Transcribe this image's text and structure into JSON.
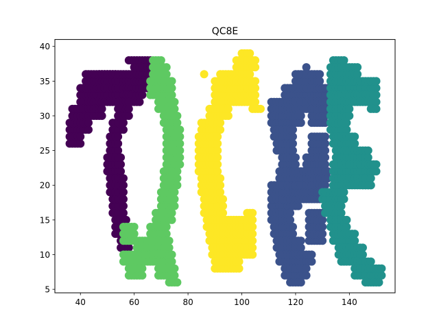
{
  "chart_data": {
    "type": "scatter",
    "title": "QC8E",
    "xlabel": "",
    "ylabel": "",
    "xlim": [
      30.5,
      157
    ],
    "ylim": [
      4.5,
      41
    ],
    "xticks": [
      40,
      60,
      80,
      100,
      120,
      140
    ],
    "yticks": [
      5,
      10,
      15,
      20,
      25,
      30,
      35,
      40
    ],
    "grid": false,
    "legend": "none",
    "marker_colors": {
      "purple": "#440154",
      "green": "#5ec962",
      "yellow": "#fde725",
      "blue": "#3b528b",
      "teal": "#21918c"
    },
    "series": [
      {
        "color": "#440154",
        "strokes": [
          [
            [
              47,
              36
            ],
            [
              53,
              36
            ]
          ],
          [
            [
              42,
              34
            ],
            [
              66,
              36
            ]
          ],
          [
            [
              40,
              32
            ],
            [
              62,
              34
            ]
          ],
          [
            [
              37,
              30
            ],
            [
              48,
              31
            ]
          ],
          [
            [
              36,
              28
            ],
            [
              43,
              29
            ]
          ],
          [
            [
              36,
              26
            ],
            [
              40,
              27
            ]
          ],
          [
            [
              56,
              33
            ],
            [
              63,
              33
            ]
          ],
          [
            [
              54,
              30
            ],
            [
              58,
              32
            ]
          ],
          [
            [
              52,
              28
            ],
            [
              56,
              29
            ]
          ],
          [
            [
              51,
              25
            ],
            [
              54,
              27
            ]
          ],
          [
            [
              50,
              22
            ],
            [
              55,
              24
            ]
          ],
          [
            [
              51,
              19
            ],
            [
              56,
              21
            ]
          ],
          [
            [
              52,
              16
            ],
            [
              56,
              18
            ]
          ],
          [
            [
              53,
              13
            ],
            [
              57,
              15
            ]
          ],
          [
            [
              55,
              11
            ],
            [
              58,
              12
            ]
          ],
          [
            [
              58,
              38
            ],
            [
              66,
              38
            ]
          ],
          [
            [
              60,
              34
            ],
            [
              68,
              37
            ]
          ]
        ]
      },
      {
        "color": "#5ec962",
        "strokes": [
          [
            [
              67,
              38
            ],
            [
              70,
              38
            ]
          ],
          [
            [
              67,
              36
            ],
            [
              72,
              37
            ]
          ],
          [
            [
              66,
              33
            ],
            [
              74,
              35
            ]
          ],
          [
            [
              69,
              31
            ],
            [
              75,
              32
            ]
          ],
          [
            [
              71,
              29
            ],
            [
              76,
              30
            ]
          ],
          [
            [
              72,
              26
            ],
            [
              77,
              28
            ]
          ],
          [
            [
              72,
              23
            ],
            [
              77,
              25
            ]
          ],
          [
            [
              71,
              20
            ],
            [
              76,
              22
            ]
          ],
          [
            [
              70,
              17
            ],
            [
              75,
              19
            ]
          ],
          [
            [
              68,
              15
            ],
            [
              74,
              16
            ]
          ],
          [
            [
              66,
              13
            ],
            [
              72,
              14
            ]
          ],
          [
            [
              61,
              11
            ],
            [
              73,
              12
            ]
          ],
          [
            [
              56,
              9
            ],
            [
              74,
              10
            ]
          ],
          [
            [
              58,
              7
            ],
            [
              63,
              8
            ]
          ],
          [
            [
              69,
              7
            ],
            [
              75,
              8
            ]
          ],
          [
            [
              73,
              6
            ],
            [
              76,
              6
            ]
          ],
          [
            [
              56,
              12
            ],
            [
              60,
              14
            ]
          ]
        ]
      },
      {
        "color": "#fde725",
        "strokes": [
          [
            [
              100,
              39
            ],
            [
              103,
              39
            ]
          ],
          [
            [
              98,
              37
            ],
            [
              105,
              38
            ]
          ],
          [
            [
              92,
              36
            ],
            [
              103,
              36
            ]
          ],
          [
            [
              90,
              32
            ],
            [
              105,
              35
            ]
          ],
          [
            [
              88,
              30
            ],
            [
              95,
              31
            ]
          ],
          [
            [
              85,
              28
            ],
            [
              92,
              29
            ]
          ],
          [
            [
              84,
              25
            ],
            [
              91,
              27
            ]
          ],
          [
            [
              84,
              22
            ],
            [
              91,
              24
            ]
          ],
          [
            [
              85,
              19
            ],
            [
              92,
              21
            ]
          ],
          [
            [
              86,
              16
            ],
            [
              93,
              18
            ]
          ],
          [
            [
              87,
              14
            ],
            [
              102,
              15
            ]
          ],
          [
            [
              88,
              12
            ],
            [
              104,
              13
            ]
          ],
          [
            [
              89,
              10
            ],
            [
              104,
              11
            ]
          ],
          [
            [
              90,
              8
            ],
            [
              99,
              9
            ]
          ],
          [
            [
              102,
              14
            ],
            [
              104,
              16
            ]
          ],
          [
            [
              104,
              31
            ],
            [
              107,
              31
            ]
          ],
          [
            [
              86,
              36
            ],
            [
              86,
              36
            ]
          ]
        ]
      },
      {
        "color": "#3b528b",
        "strokes": [
          [
            [
              124,
              37
            ],
            [
              124,
              37
            ]
          ],
          [
            [
              120,
              35
            ],
            [
              129,
              36
            ]
          ],
          [
            [
              116,
              33
            ],
            [
              132,
              34
            ]
          ],
          [
            [
              111,
              31
            ],
            [
              133,
              32
            ]
          ],
          [
            [
              111,
              29
            ],
            [
              122,
              30
            ]
          ],
          [
            [
              112,
              27
            ],
            [
              119,
              28
            ]
          ],
          [
            [
              113,
              25
            ],
            [
              119,
              26
            ]
          ],
          [
            [
              115,
              23
            ],
            [
              120,
              24
            ]
          ],
          [
            [
              126,
              25
            ],
            [
              131,
              27
            ]
          ],
          [
            [
              124,
              23
            ],
            [
              131,
              24
            ]
          ],
          [
            [
              114,
              21
            ],
            [
              132,
              22
            ]
          ],
          [
            [
              111,
              19
            ],
            [
              131,
              20
            ]
          ],
          [
            [
              111,
              17
            ],
            [
              121,
              18
            ]
          ],
          [
            [
              111,
              15
            ],
            [
              118,
              16
            ]
          ],
          [
            [
              112,
              13
            ],
            [
              119,
              14
            ]
          ],
          [
            [
              113,
              11
            ],
            [
              122,
              12
            ]
          ],
          [
            [
              114,
              9
            ],
            [
              126,
              10
            ]
          ],
          [
            [
              116,
              7
            ],
            [
              124,
              8
            ]
          ],
          [
            [
              118,
              6
            ],
            [
              122,
              6
            ]
          ],
          [
            [
              125,
              12
            ],
            [
              130,
              16
            ]
          ],
          [
            [
              126,
              29
            ],
            [
              131,
              31
            ]
          ],
          [
            [
              121,
              18
            ],
            [
              130,
              18
            ]
          ]
        ]
      },
      {
        "color": "#21918c",
        "strokes": [
          [
            [
              134,
              38
            ],
            [
              138,
              38
            ]
          ],
          [
            [
              133,
              36
            ],
            [
              143,
              37
            ]
          ],
          [
            [
              133,
              34
            ],
            [
              150,
              35
            ]
          ],
          [
            [
              133,
              32
            ],
            [
              150,
              33
            ]
          ],
          [
            [
              133,
              30
            ],
            [
              140,
              31
            ]
          ],
          [
            [
              148,
              31
            ],
            [
              150,
              31
            ]
          ],
          [
            [
              133,
              28
            ],
            [
              139,
              29
            ]
          ],
          [
            [
              134,
              26
            ],
            [
              142,
              27
            ]
          ],
          [
            [
              135,
              24
            ],
            [
              147,
              25
            ]
          ],
          [
            [
              134,
              22
            ],
            [
              150,
              23
            ]
          ],
          [
            [
              134,
              20
            ],
            [
              148,
              21
            ]
          ],
          [
            [
              130,
              18
            ],
            [
              138,
              19
            ]
          ],
          [
            [
              131,
              16
            ],
            [
              137,
              17
            ]
          ],
          [
            [
              133,
              14
            ],
            [
              139,
              15
            ]
          ],
          [
            [
              134,
              12
            ],
            [
              142,
              13
            ]
          ],
          [
            [
              136,
              10
            ],
            [
              145,
              11
            ]
          ],
          [
            [
              137,
              9
            ],
            [
              148,
              9
            ]
          ],
          [
            [
              142,
              7
            ],
            [
              152,
              8
            ]
          ],
          [
            [
              146,
              6
            ],
            [
              151,
              6
            ]
          ],
          [
            [
              145,
              20
            ],
            [
              148,
              20
            ]
          ]
        ]
      }
    ]
  }
}
